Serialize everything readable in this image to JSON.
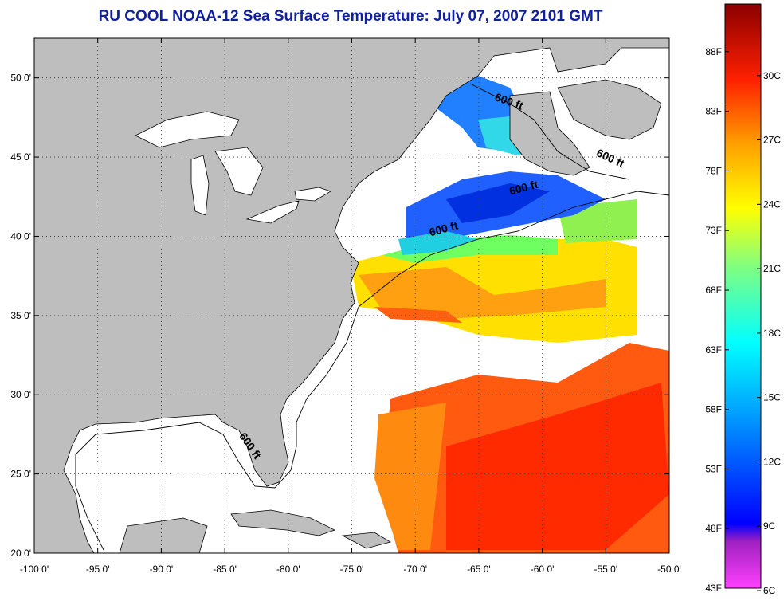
{
  "title": "RU COOL  NOAA-12  Sea Surface Temperature:  July 07, 2007 2101 GMT",
  "map": {
    "extent": {
      "lon": [
        -100,
        -50
      ],
      "lat": [
        20,
        52.5
      ]
    },
    "land_color": "#bebebe",
    "cloud_color": "#ffffff",
    "lon_ticks": [
      {
        "value": -100,
        "label": "-100 0'"
      },
      {
        "value": -95,
        "label": "-95 0'"
      },
      {
        "value": -90,
        "label": "-90 0'"
      },
      {
        "value": -85,
        "label": "-85 0'"
      },
      {
        "value": -80,
        "label": "-80 0'"
      },
      {
        "value": -75,
        "label": "-75 0'"
      },
      {
        "value": -70,
        "label": "-70 0'"
      },
      {
        "value": -65,
        "label": "-65 0'"
      },
      {
        "value": -60,
        "label": "-60 0'"
      },
      {
        "value": -55,
        "label": "-55 0'"
      },
      {
        "value": -50,
        "label": "-50 0'"
      }
    ],
    "lat_ticks": [
      {
        "value": 20,
        "label": "20 0'"
      },
      {
        "value": 25,
        "label": "25 0'"
      },
      {
        "value": 30,
        "label": "30 0'"
      },
      {
        "value": 35,
        "label": "35 0'"
      },
      {
        "value": 40,
        "label": "40 0'"
      },
      {
        "value": 45,
        "label": "45 0'"
      },
      {
        "value": 50,
        "label": "50 0'"
      }
    ],
    "contour_labels": [
      {
        "text": "600 ft",
        "lon": -63.8,
        "lat": 48.6,
        "rot": 20
      },
      {
        "text": "600 ft",
        "lon": -55.8,
        "lat": 45.1,
        "rot": 25
      },
      {
        "text": "600 ft",
        "lon": -62.5,
        "lat": 42.6,
        "rot": -15
      },
      {
        "text": "600 ft",
        "lon": -68.8,
        "lat": 40.0,
        "rot": -15
      },
      {
        "text": "600 ft",
        "lon": -83.9,
        "lat": 27.4,
        "rot": 55
      }
    ]
  },
  "colorbar": {
    "range_f": [
      43,
      92
    ],
    "fahrenheit": [
      "43F",
      "48F",
      "53F",
      "58F",
      "63F",
      "68F",
      "73F",
      "78F",
      "83F",
      "88F"
    ],
    "celsius": [
      "6C",
      "9C",
      "12C",
      "15C",
      "18C",
      "21C",
      "24C",
      "27C",
      "30C"
    ]
  }
}
